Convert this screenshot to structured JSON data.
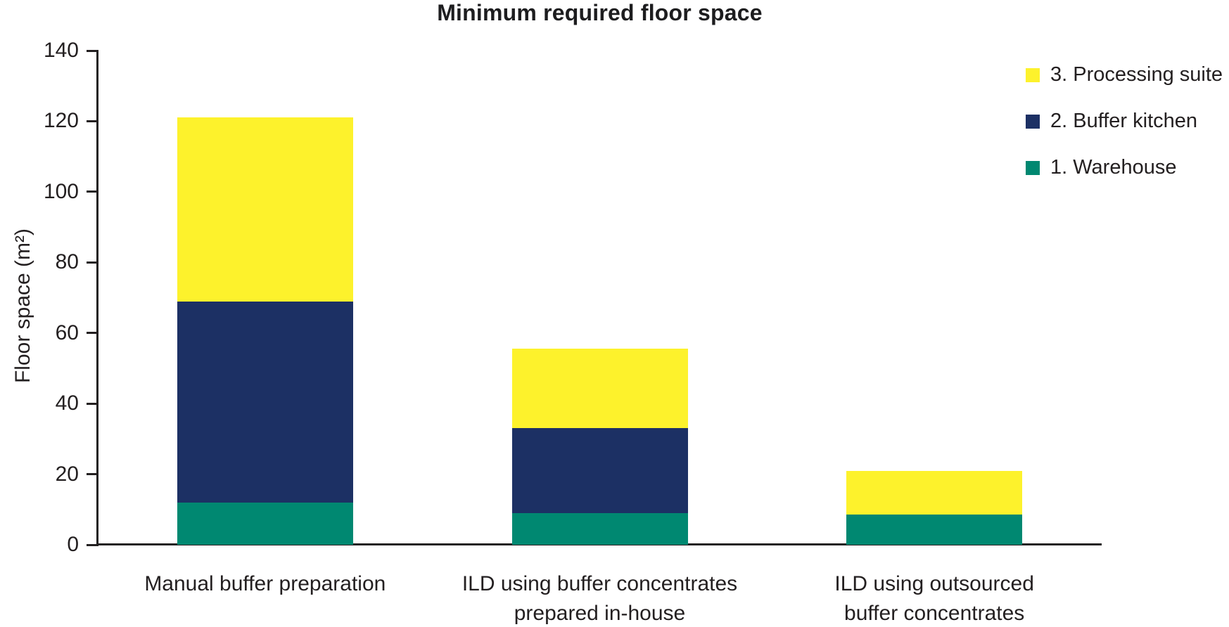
{
  "title": "Minimum required floor space",
  "y_axis": {
    "label": "Floor space (m²)",
    "ticks": [
      0,
      20,
      40,
      60,
      80,
      100,
      120,
      140
    ]
  },
  "colors": {
    "warehouse": "#008871",
    "buffer_kitchen": "#1C3064",
    "processing_suite": "#FDF22C",
    "axis": "#231f20",
    "text": "#231f20"
  },
  "legend": {
    "position": "upper-right",
    "items_top_to_bottom": [
      {
        "label": "3. Processing suite",
        "color": "#FDF22C"
      },
      {
        "label": "2. Buffer kitchen",
        "color": "#1C3064"
      },
      {
        "label": "1. Warehouse",
        "color": "#008871"
      }
    ]
  },
  "chart_data": {
    "type": "bar",
    "stacked": true,
    "title": "Minimum required floor space",
    "xlabel": "",
    "ylabel": "Floor space (m²)",
    "ylim": [
      0,
      140
    ],
    "yticks": [
      0,
      20,
      40,
      60,
      80,
      100,
      120,
      140
    ],
    "grid": false,
    "legend_position": "upper-right",
    "categories": [
      "Manual buffer preparation",
      "ILD using buffer concentrates\nprepared in-house",
      "ILD using outsourced\nbuffer concentrates"
    ],
    "series": [
      {
        "name": "1. Warehouse",
        "color": "#008871",
        "values": [
          12,
          9,
          8.5
        ]
      },
      {
        "name": "2. Buffer kitchen",
        "color": "#1C3064",
        "values": [
          57,
          24,
          0
        ]
      },
      {
        "name": "3. Processing suite",
        "color": "#FDF22C",
        "values": [
          52,
          22.5,
          12.5
        ]
      }
    ],
    "stack_totals": [
      121,
      55.5,
      21
    ]
  }
}
